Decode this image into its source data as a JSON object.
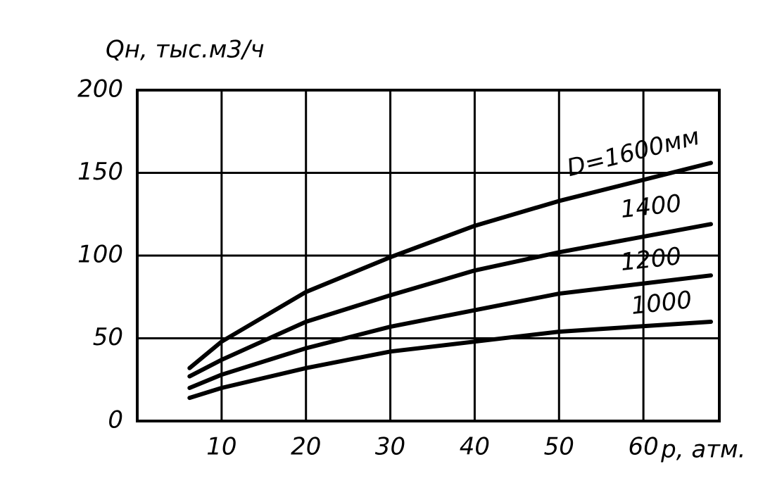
{
  "chart_data": {
    "type": "line",
    "y_label": "Qн, тыс.м3/ч",
    "x_label": "p, атм.",
    "xlim": [
      0,
      69
    ],
    "ylim": [
      0,
      200
    ],
    "xticks": [
      10,
      20,
      30,
      40,
      50,
      60
    ],
    "yticks": [
      0,
      50,
      100,
      150,
      200
    ],
    "grid": true,
    "x": [
      6.2,
      10,
      20,
      30,
      40,
      50,
      68
    ],
    "series": [
      {
        "name": "D=1600мм",
        "color": "#000000",
        "values": [
          32,
          48,
          78,
          99,
          118,
          133,
          156
        ]
      },
      {
        "name": "1400",
        "color": "#000000",
        "values": [
          27,
          37,
          60,
          76,
          91,
          102,
          119
        ]
      },
      {
        "name": "1200",
        "color": "#000000",
        "values": [
          20,
          28,
          44,
          57,
          67,
          77,
          88
        ]
      },
      {
        "name": "1000",
        "color": "#000000",
        "values": [
          14,
          20,
          32,
          42,
          48,
          54,
          60
        ]
      }
    ]
  }
}
